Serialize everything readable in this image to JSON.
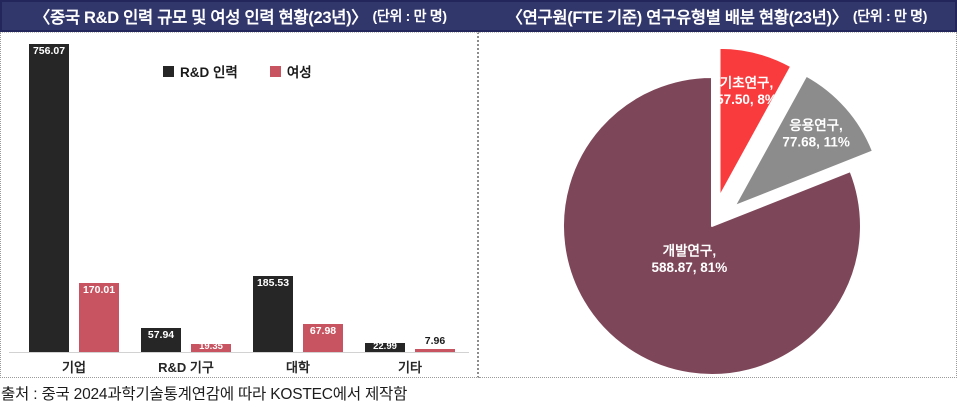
{
  "header": {
    "left_title": {
      "main": "〈중국 R&D 인력 규모 및 여성 인력 현황(23년)〉",
      "unit": "(단위 : 만 명)"
    },
    "right_title": {
      "main": "〈연구원(FTE 기준) 연구유형별 배분 현황(23년)〉",
      "unit": "(단위 : 만 명)"
    }
  },
  "source": "출처 : 중국 2024과학기술통계연감에 따라 KOSTEC에서 제작함",
  "colors": {
    "title_bg": "#31366B",
    "title_border": "#23265B",
    "bar_rd": "#262626",
    "bar_female": "#C85461",
    "pie_basic": "#FA3B3D",
    "pie_applied": "#8C8C8C",
    "pie_development": "#7E4659"
  },
  "chart_data": [
    {
      "type": "bar",
      "title": "중국 R&D 인력 규모 및 여성 인력 현황(23년)",
      "unit": "만 명",
      "categories": [
        "기업",
        "R&D 기구",
        "대학",
        "기타"
      ],
      "series": [
        {
          "name": "R&D 인력",
          "color": "#262626",
          "values": [
            756.07,
            57.94,
            185.53,
            22.99
          ],
          "value_labels": [
            "756.07",
            "57.94",
            "185.53",
            "22.99"
          ],
          "label_inside": [
            true,
            true,
            true,
            true
          ]
        },
        {
          "name": "여성",
          "color": "#C85461",
          "values": [
            170.01,
            19.35,
            67.98,
            7.96
          ],
          "value_labels": [
            "170.01",
            "19.35",
            "67.98",
            "7.96"
          ],
          "label_inside": [
            true,
            true,
            true,
            false
          ]
        }
      ],
      "ylim": [
        0,
        756.07
      ],
      "grid": false,
      "legend_position": "top"
    },
    {
      "type": "pie",
      "title": "연구원(FTE 기준) 연구유형별 배분 현황(23년)",
      "unit": "만 명",
      "direction": "clockwise",
      "start_angle_deg": 0,
      "slices": [
        {
          "name": "기초연구",
          "value": 57.5,
          "pct": 8,
          "color": "#FA3B3D",
          "exploded": true,
          "label_lines": [
            "기초연구,",
            "57.50, 8%"
          ]
        },
        {
          "name": "응용연구",
          "value": 77.68,
          "pct": 11,
          "color": "#8C8C8C",
          "exploded": true,
          "label_lines": [
            "응용연구,",
            "77.68, 11%"
          ]
        },
        {
          "name": "개발연구",
          "value": 588.87,
          "pct": 81,
          "color": "#7E4659",
          "exploded": false,
          "label_lines": [
            "개발연구,",
            "588.87, 81%"
          ]
        }
      ]
    }
  ]
}
